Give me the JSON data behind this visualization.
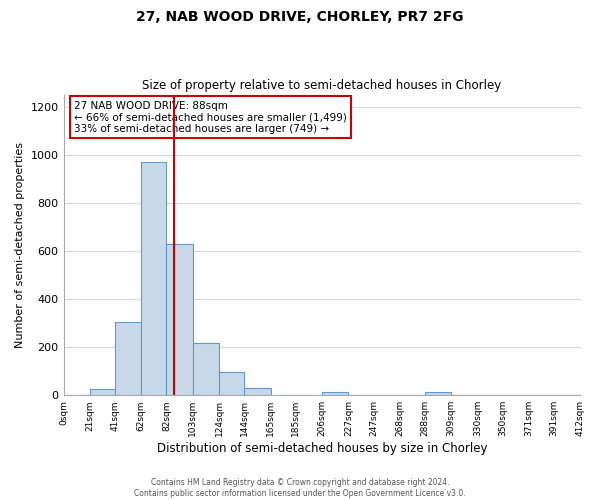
{
  "title": "27, NAB WOOD DRIVE, CHORLEY, PR7 2FG",
  "subtitle": "Size of property relative to semi-detached houses in Chorley",
  "xlabel": "Distribution of semi-detached houses by size in Chorley",
  "ylabel": "Number of semi-detached properties",
  "bin_edges": [
    0,
    21,
    41,
    62,
    82,
    103,
    124,
    144,
    165,
    185,
    206,
    227,
    247,
    268,
    288,
    309,
    330,
    350,
    371,
    391,
    412
  ],
  "bin_counts": [
    0,
    25,
    305,
    970,
    630,
    215,
    95,
    28,
    0,
    0,
    15,
    0,
    0,
    0,
    12,
    0,
    0,
    0,
    0,
    0
  ],
  "bar_color": "#c8d8e8",
  "bar_edge_color": "#5b9bd5",
  "property_line_x": 88,
  "property_line_color": "#cc0000",
  "annotation_title": "27 NAB WOOD DRIVE: 88sqm",
  "annotation_line1": "← 66% of semi-detached houses are smaller (1,499)",
  "annotation_line2": "33% of semi-detached houses are larger (749) →",
  "annotation_box_color": "#ffffff",
  "annotation_box_edge": "#cc0000",
  "ylim": [
    0,
    1250
  ],
  "yticks": [
    0,
    200,
    400,
    600,
    800,
    1000,
    1200
  ],
  "footer_line1": "Contains HM Land Registry data © Crown copyright and database right 2024.",
  "footer_line2": "Contains public sector information licensed under the Open Government Licence v3.0.",
  "background_color": "#ffffff",
  "grid_color": "#d0d8e8"
}
